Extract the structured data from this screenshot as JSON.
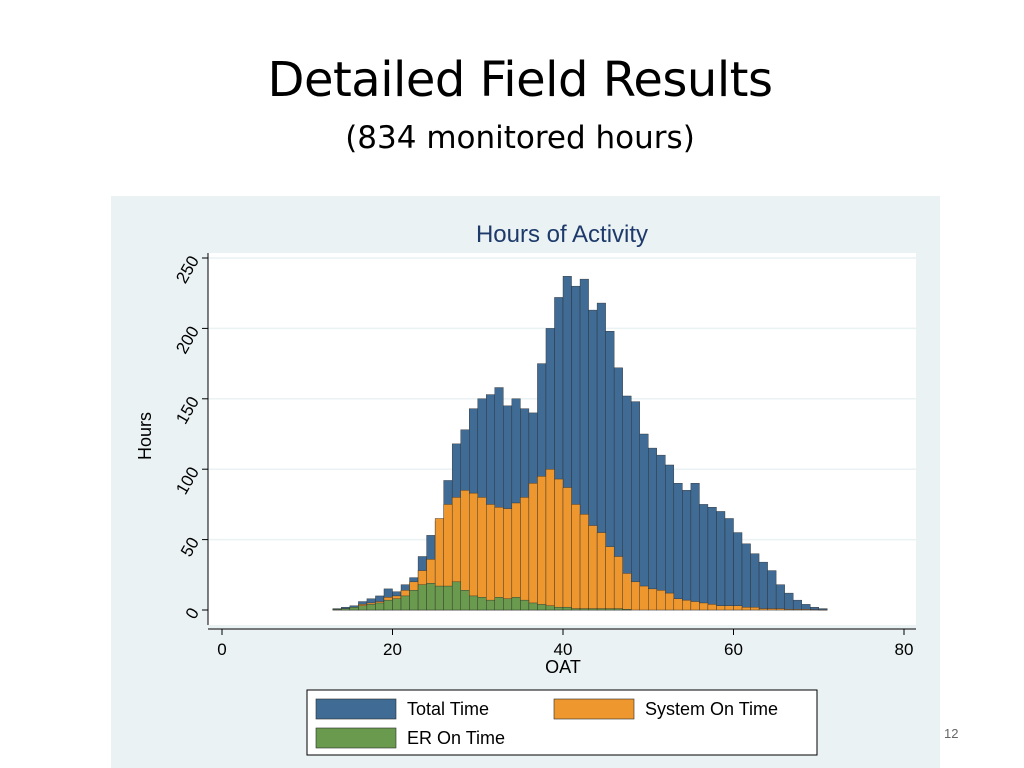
{
  "slide": {
    "title": "Detailed Field Results",
    "subtitle": "(834 monitored hours)",
    "page_number": "12"
  },
  "chart_data": {
    "type": "bar",
    "stacking": "overlay",
    "title": "Hours of Activity",
    "xlabel": "OAT",
    "ylabel": "Hours",
    "xlim": [
      0,
      80
    ],
    "ylim": [
      0,
      250
    ],
    "xticks": [
      0,
      20,
      40,
      60,
      80
    ],
    "yticks": [
      0,
      50,
      100,
      150,
      200,
      250
    ],
    "bin_width": 1,
    "bin_start": 13,
    "grid": true,
    "legend_position": "bottom",
    "colors": {
      "total": "#3f6b94",
      "system": "#ee972f",
      "er": "#6a9a4e",
      "title": "#1e3a6b",
      "plot_bg": "#ffffff",
      "panel_bg": "#eaf2f3"
    },
    "series": [
      {
        "name": "Total Time",
        "values": [
          1,
          2,
          3,
          6,
          8,
          10,
          15,
          13,
          18,
          23,
          38,
          53,
          63,
          92,
          118,
          128,
          143,
          150,
          153,
          158,
          145,
          150,
          143,
          140,
          175,
          200,
          222,
          237,
          230,
          235,
          213,
          218,
          198,
          172,
          152,
          148,
          125,
          115,
          110,
          103,
          90,
          85,
          90,
          75,
          73,
          70,
          65,
          55,
          47,
          40,
          34,
          28,
          18,
          12,
          7,
          4,
          2,
          1
        ]
      },
      {
        "name": "System On Time",
        "values": [
          0.5,
          1,
          2,
          4,
          5,
          6,
          9,
          10,
          14,
          20,
          28,
          36,
          65,
          75,
          80,
          85,
          83,
          80,
          75,
          73,
          72,
          76,
          80,
          90,
          95,
          100,
          93,
          87,
          75,
          68,
          60,
          55,
          45,
          38,
          26,
          20,
          17,
          15,
          14,
          12,
          8,
          7,
          6,
          5,
          4,
          3,
          3,
          3,
          2,
          2,
          1,
          1,
          1,
          0.5,
          0.5,
          0.5,
          0.3,
          0.2
        ]
      },
      {
        "name": "ER On Time",
        "values": [
          0.5,
          1,
          2,
          3,
          4,
          5,
          7,
          8,
          10,
          14,
          18,
          19,
          17,
          17,
          20,
          14,
          10,
          9,
          7,
          9,
          8,
          9,
          7,
          5,
          4,
          3,
          2,
          2,
          1,
          1,
          1,
          1,
          1,
          1,
          0.5,
          0,
          0,
          0,
          0,
          0,
          0,
          0,
          0,
          0,
          0,
          0,
          0,
          0,
          0,
          0,
          0,
          0,
          0,
          0,
          0,
          0,
          0,
          0
        ]
      }
    ]
  }
}
